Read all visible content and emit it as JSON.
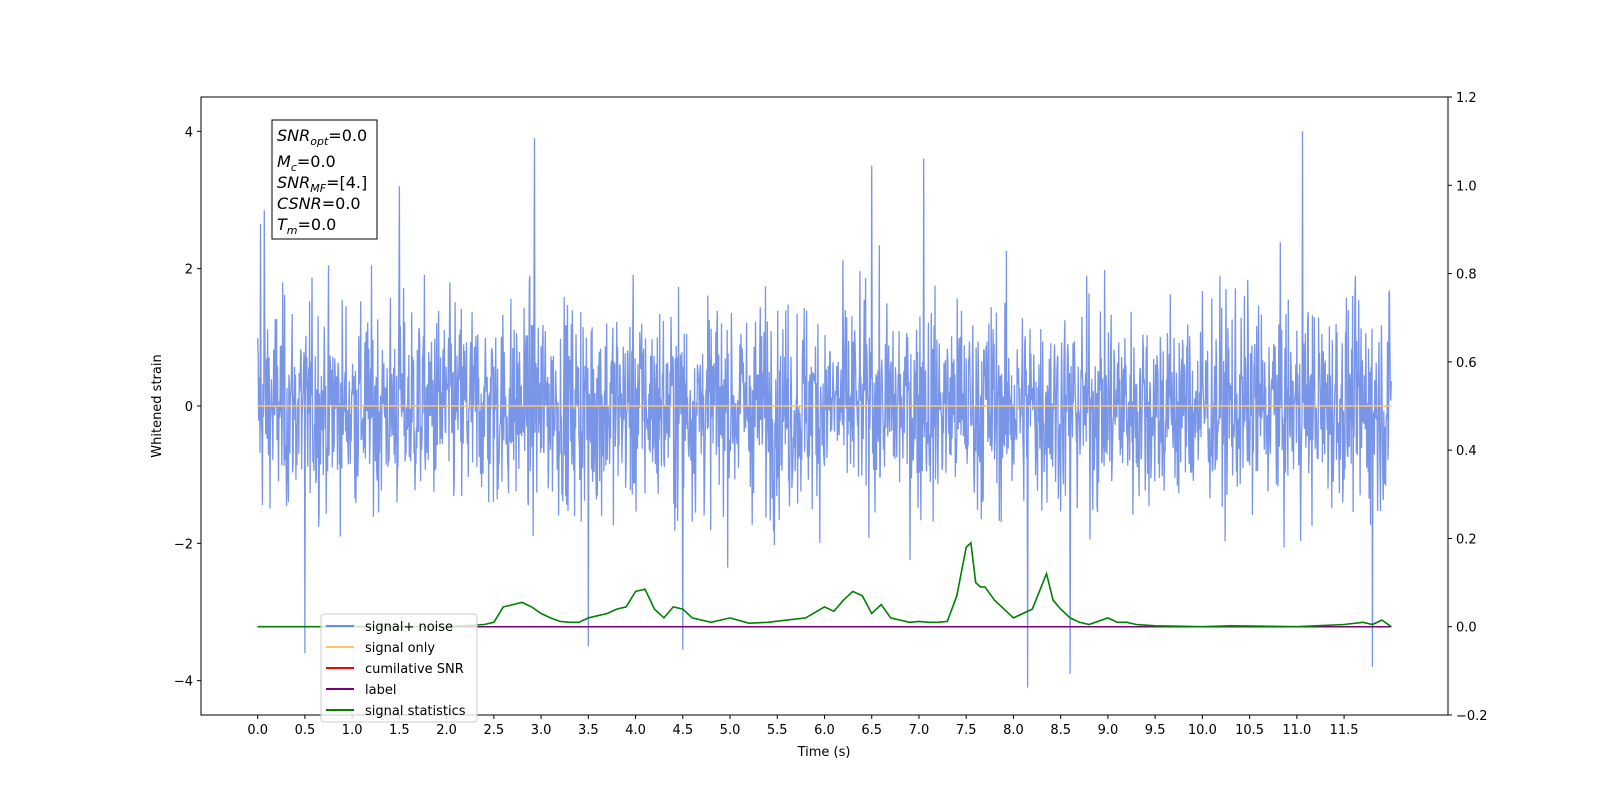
{
  "chart_data": {
    "type": "line",
    "xlabel": "Time (s)",
    "ylabel": "Whitened strain",
    "x_range": [
      -0.6,
      12.6
    ],
    "xticks": [
      "0.0",
      "0.5",
      "1.0",
      "1.5",
      "2.0",
      "2.5",
      "3.0",
      "3.5",
      "4.0",
      "4.5",
      "5.0",
      "5.5",
      "6.0",
      "6.5",
      "7.0",
      "7.5",
      "8.0",
      "8.5",
      "9.0",
      "9.5",
      "10.0",
      "10.5",
      "11.0",
      "11.5"
    ],
    "y_left_range": [
      -4.5,
      4.5
    ],
    "y_left_ticks": [
      "−4",
      "−2",
      "0",
      "2",
      "4"
    ],
    "y_right_range": [
      -0.2,
      1.2
    ],
    "y_right_ticks": [
      "−0.2",
      "0.0",
      "0.2",
      "0.4",
      "0.6",
      "0.8",
      "1.0",
      "1.2"
    ],
    "grid": false,
    "legend_position": "lower-left",
    "series": [
      {
        "name": "signal+ noise",
        "axis": "left",
        "color": "#6a8ae6",
        "description": "whitened noise, approx. range -4 to 4 over t=0 to 12",
        "peaks": [
          [
            0.03,
            2.65
          ],
          [
            0.07,
            2.85
          ],
          [
            0.5,
            -3.6
          ],
          [
            1.5,
            3.2
          ],
          [
            2.93,
            3.9
          ],
          [
            3.5,
            -3.5
          ],
          [
            4.5,
            -3.55
          ],
          [
            6.5,
            3.5
          ],
          [
            7.05,
            3.6
          ],
          [
            8.15,
            -4.1
          ],
          [
            8.6,
            -3.9
          ],
          [
            11.06,
            4.0
          ],
          [
            11.8,
            -3.8
          ]
        ]
      },
      {
        "name": "signal only",
        "axis": "left",
        "color": "#ffc46b",
        "x": [
          0,
          12
        ],
        "y": [
          0,
          0
        ]
      },
      {
        "name": "cumilative SNR",
        "axis": "right",
        "color": "#ff0000",
        "x": [
          0,
          12
        ],
        "y": [
          0,
          0
        ]
      },
      {
        "name": "label",
        "axis": "right",
        "color": "#7a007a",
        "x": [
          0,
          12
        ],
        "y": [
          0,
          0
        ]
      },
      {
        "name": "signal statistics",
        "axis": "right",
        "color": "#008000",
        "x": [
          0.0,
          2.0,
          2.4,
          2.5,
          2.6,
          2.7,
          2.8,
          2.9,
          3.0,
          3.1,
          3.2,
          3.3,
          3.4,
          3.5,
          3.6,
          3.7,
          3.8,
          3.9,
          4.0,
          4.1,
          4.2,
          4.3,
          4.4,
          4.5,
          4.6,
          4.8,
          5.0,
          5.2,
          5.4,
          5.6,
          5.8,
          6.0,
          6.1,
          6.2,
          6.3,
          6.4,
          6.5,
          6.6,
          6.7,
          6.8,
          6.9,
          7.0,
          7.1,
          7.2,
          7.3,
          7.4,
          7.5,
          7.55,
          7.6,
          7.65,
          7.7,
          7.8,
          7.9,
          8.0,
          8.2,
          8.35,
          8.42,
          8.5,
          8.6,
          8.7,
          8.8,
          9.0,
          9.1,
          9.2,
          9.3,
          9.5,
          10.0,
          10.3,
          11.0,
          11.5,
          11.7,
          11.8,
          11.9,
          12.0
        ],
        "y": [
          0,
          0,
          0.005,
          0.01,
          0.045,
          0.05,
          0.055,
          0.045,
          0.03,
          0.02,
          0.012,
          0.01,
          0.01,
          0.02,
          0.025,
          0.03,
          0.04,
          0.045,
          0.08,
          0.085,
          0.04,
          0.02,
          0.045,
          0.04,
          0.02,
          0.01,
          0.02,
          0.008,
          0.01,
          0.015,
          0.02,
          0.045,
          0.035,
          0.06,
          0.08,
          0.07,
          0.03,
          0.05,
          0.02,
          0.015,
          0.01,
          0.012,
          0.01,
          0.01,
          0.012,
          0.07,
          0.18,
          0.19,
          0.1,
          0.09,
          0.09,
          0.06,
          0.04,
          0.02,
          0.04,
          0.12,
          0.06,
          0.04,
          0.02,
          0.01,
          0.005,
          0.02,
          0.01,
          0.01,
          0.005,
          0.002,
          0,
          0.002,
          0,
          0.005,
          0.01,
          0.005,
          0.015,
          0
        ]
      }
    ],
    "info_box": [
      "SNR_opt=0.0",
      "M_c=0.0",
      "SNR_MF=[4.]",
      "CSNR=0.0",
      "T_m=0.0"
    ]
  }
}
